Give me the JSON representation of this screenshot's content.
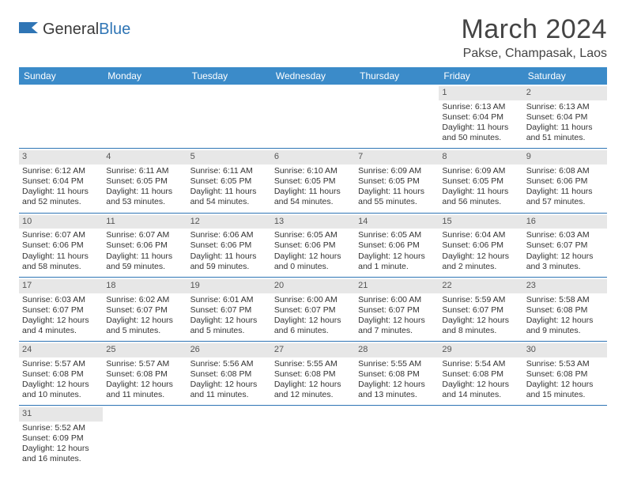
{
  "brand": {
    "name_part1": "General",
    "name_part2": "Blue",
    "flag_color": "#2f75b5"
  },
  "title": "March 2024",
  "location": "Pakse, Champasak, Laos",
  "header_bg": "#3b8bc9",
  "header_text_color": "#ffffff",
  "daynum_bg": "#e7e7e7",
  "border_color": "#2f75b5",
  "text_color": "#333333",
  "cell_fontsize": 10.5,
  "weekdays": [
    "Sunday",
    "Monday",
    "Tuesday",
    "Wednesday",
    "Thursday",
    "Friday",
    "Saturday"
  ],
  "weeks": [
    [
      null,
      null,
      null,
      null,
      null,
      {
        "n": "1",
        "sunrise": "6:13 AM",
        "sunset": "6:04 PM",
        "daylight": "11 hours and 50 minutes."
      },
      {
        "n": "2",
        "sunrise": "6:13 AM",
        "sunset": "6:04 PM",
        "daylight": "11 hours and 51 minutes."
      }
    ],
    [
      {
        "n": "3",
        "sunrise": "6:12 AM",
        "sunset": "6:04 PM",
        "daylight": "11 hours and 52 minutes."
      },
      {
        "n": "4",
        "sunrise": "6:11 AM",
        "sunset": "6:05 PM",
        "daylight": "11 hours and 53 minutes."
      },
      {
        "n": "5",
        "sunrise": "6:11 AM",
        "sunset": "6:05 PM",
        "daylight": "11 hours and 54 minutes."
      },
      {
        "n": "6",
        "sunrise": "6:10 AM",
        "sunset": "6:05 PM",
        "daylight": "11 hours and 54 minutes."
      },
      {
        "n": "7",
        "sunrise": "6:09 AM",
        "sunset": "6:05 PM",
        "daylight": "11 hours and 55 minutes."
      },
      {
        "n": "8",
        "sunrise": "6:09 AM",
        "sunset": "6:05 PM",
        "daylight": "11 hours and 56 minutes."
      },
      {
        "n": "9",
        "sunrise": "6:08 AM",
        "sunset": "6:06 PM",
        "daylight": "11 hours and 57 minutes."
      }
    ],
    [
      {
        "n": "10",
        "sunrise": "6:07 AM",
        "sunset": "6:06 PM",
        "daylight": "11 hours and 58 minutes."
      },
      {
        "n": "11",
        "sunrise": "6:07 AM",
        "sunset": "6:06 PM",
        "daylight": "11 hours and 59 minutes."
      },
      {
        "n": "12",
        "sunrise": "6:06 AM",
        "sunset": "6:06 PM",
        "daylight": "11 hours and 59 minutes."
      },
      {
        "n": "13",
        "sunrise": "6:05 AM",
        "sunset": "6:06 PM",
        "daylight": "12 hours and 0 minutes."
      },
      {
        "n": "14",
        "sunrise": "6:05 AM",
        "sunset": "6:06 PM",
        "daylight": "12 hours and 1 minute."
      },
      {
        "n": "15",
        "sunrise": "6:04 AM",
        "sunset": "6:06 PM",
        "daylight": "12 hours and 2 minutes."
      },
      {
        "n": "16",
        "sunrise": "6:03 AM",
        "sunset": "6:07 PM",
        "daylight": "12 hours and 3 minutes."
      }
    ],
    [
      {
        "n": "17",
        "sunrise": "6:03 AM",
        "sunset": "6:07 PM",
        "daylight": "12 hours and 4 minutes."
      },
      {
        "n": "18",
        "sunrise": "6:02 AM",
        "sunset": "6:07 PM",
        "daylight": "12 hours and 5 minutes."
      },
      {
        "n": "19",
        "sunrise": "6:01 AM",
        "sunset": "6:07 PM",
        "daylight": "12 hours and 5 minutes."
      },
      {
        "n": "20",
        "sunrise": "6:00 AM",
        "sunset": "6:07 PM",
        "daylight": "12 hours and 6 minutes."
      },
      {
        "n": "21",
        "sunrise": "6:00 AM",
        "sunset": "6:07 PM",
        "daylight": "12 hours and 7 minutes."
      },
      {
        "n": "22",
        "sunrise": "5:59 AM",
        "sunset": "6:07 PM",
        "daylight": "12 hours and 8 minutes."
      },
      {
        "n": "23",
        "sunrise": "5:58 AM",
        "sunset": "6:08 PM",
        "daylight": "12 hours and 9 minutes."
      }
    ],
    [
      {
        "n": "24",
        "sunrise": "5:57 AM",
        "sunset": "6:08 PM",
        "daylight": "12 hours and 10 minutes."
      },
      {
        "n": "25",
        "sunrise": "5:57 AM",
        "sunset": "6:08 PM",
        "daylight": "12 hours and 11 minutes."
      },
      {
        "n": "26",
        "sunrise": "5:56 AM",
        "sunset": "6:08 PM",
        "daylight": "12 hours and 11 minutes."
      },
      {
        "n": "27",
        "sunrise": "5:55 AM",
        "sunset": "6:08 PM",
        "daylight": "12 hours and 12 minutes."
      },
      {
        "n": "28",
        "sunrise": "5:55 AM",
        "sunset": "6:08 PM",
        "daylight": "12 hours and 13 minutes."
      },
      {
        "n": "29",
        "sunrise": "5:54 AM",
        "sunset": "6:08 PM",
        "daylight": "12 hours and 14 minutes."
      },
      {
        "n": "30",
        "sunrise": "5:53 AM",
        "sunset": "6:08 PM",
        "daylight": "12 hours and 15 minutes."
      }
    ],
    [
      {
        "n": "31",
        "sunrise": "5:52 AM",
        "sunset": "6:09 PM",
        "daylight": "12 hours and 16 minutes."
      },
      null,
      null,
      null,
      null,
      null,
      null
    ]
  ],
  "labels": {
    "sunrise": "Sunrise:",
    "sunset": "Sunset:",
    "daylight": "Daylight:"
  }
}
